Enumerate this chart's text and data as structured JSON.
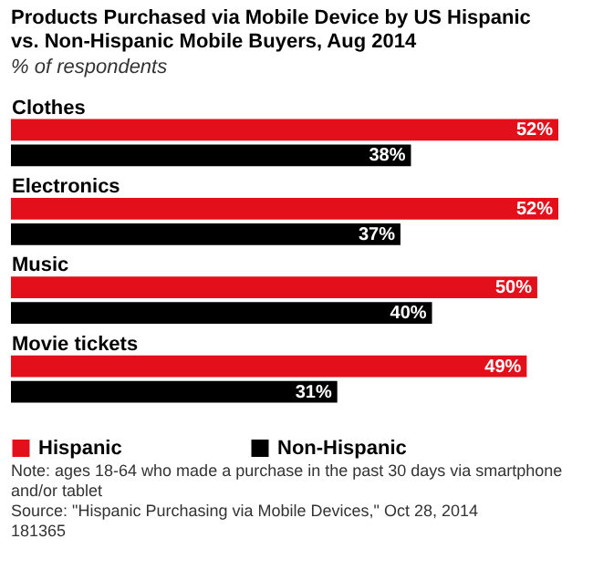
{
  "chart_data": {
    "type": "bar",
    "orientation": "horizontal",
    "title": "Products Purchased via Mobile Device by US Hispanic vs. Non-Hispanic Mobile Buyers, Aug 2014",
    "subtitle": "% of respondents",
    "categories": [
      "Clothes",
      "Electronics",
      "Music",
      "Movie tickets"
    ],
    "series": [
      {
        "name": "Hispanic",
        "color": "#e3101b",
        "values": [
          52,
          52,
          50,
          49
        ],
        "value_labels": [
          "52%",
          "52%",
          "50%",
          "49%"
        ]
      },
      {
        "name": "Non-Hispanic",
        "color": "#000000",
        "values": [
          38,
          37,
          40,
          31
        ],
        "value_labels": [
          "38%",
          "37%",
          "40%",
          "31%"
        ]
      }
    ],
    "legend": "bottom",
    "annotations": [
      "Note: ages 18-64 who made a purchase in the past 30 days via smartphone and/or tablet",
      "Source: \"Hispanic Purchasing via Mobile Devices,\" Oct 28, 2014",
      "181365"
    ]
  }
}
